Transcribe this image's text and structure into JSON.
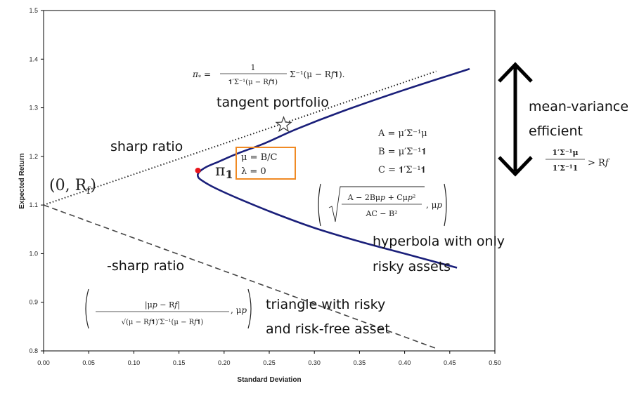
{
  "chart_data": {
    "type": "line",
    "xlabel": "Standard Deviation",
    "ylabel": "Expected Return",
    "xlim": [
      0.0,
      0.5
    ],
    "ylim": [
      0.8,
      1.5
    ],
    "x_ticks": [
      "0.00",
      "0.05",
      "0.10",
      "0.15",
      "0.20",
      "0.25",
      "0.30",
      "0.35",
      "0.40",
      "0.45",
      "0.50"
    ],
    "y_ticks": [
      "0.8",
      "0.9",
      "1.0",
      "1.1",
      "1.2",
      "1.3",
      "1.4",
      "1.5"
    ],
    "grid": false,
    "series": [
      {
        "style": "solid",
        "color": "#1a1f7a",
        "points": [
          [
            0.472,
            1.38
          ],
          [
            0.4,
            1.337
          ],
          [
            0.33,
            1.292
          ],
          [
            0.28,
            1.256
          ],
          [
            0.245,
            1.227
          ],
          [
            0.215,
            1.206
          ],
          [
            0.195,
            1.19
          ],
          [
            0.18,
            1.178
          ],
          [
            0.172,
            1.167
          ],
          [
            0.171,
            1.159
          ],
          [
            0.175,
            1.151
          ],
          [
            0.19,
            1.135
          ],
          [
            0.22,
            1.11
          ],
          [
            0.26,
            1.08
          ],
          [
            0.3,
            1.053
          ],
          [
            0.35,
            1.025
          ],
          [
            0.4,
            1.0
          ],
          [
            0.458,
            0.971
          ]
        ]
      },
      {
        "style": "dotted",
        "color": "#222222",
        "points": [
          [
            0.0,
            1.1
          ],
          [
            0.435,
            1.375
          ]
        ]
      },
      {
        "style": "dashed",
        "color": "#444444",
        "points": [
          [
            0.0,
            1.1
          ],
          [
            0.435,
            0.805
          ]
        ]
      }
    ],
    "markers": [
      {
        "shape": "star",
        "x": 0.266,
        "y": 1.265
      },
      {
        "shape": "dot",
        "x": 0.171,
        "y": 1.171,
        "color": "#e8151b"
      }
    ],
    "annotations": {
      "tangent_portfolio": "tangent portfolio",
      "sharp_ratio": "sharp ratio",
      "neg_sharp_ratio": "-sharp ratio",
      "hyperbola_line1": "hyperbola with only",
      "hyperbola_line2": "risky assets",
      "triangle_line1": "triangle with risky",
      "triangle_line2": "and risk-free asset",
      "mv_line1": "mean-variance",
      "mv_line2": "efficient",
      "pi_one": "π",
      "pi_one_sub": "1",
      "origin_label": "(0, R",
      "origin_sub": "f",
      "origin_close": ")",
      "box_line1": "μ = B/C",
      "box_line2": "λ = 0"
    }
  }
}
